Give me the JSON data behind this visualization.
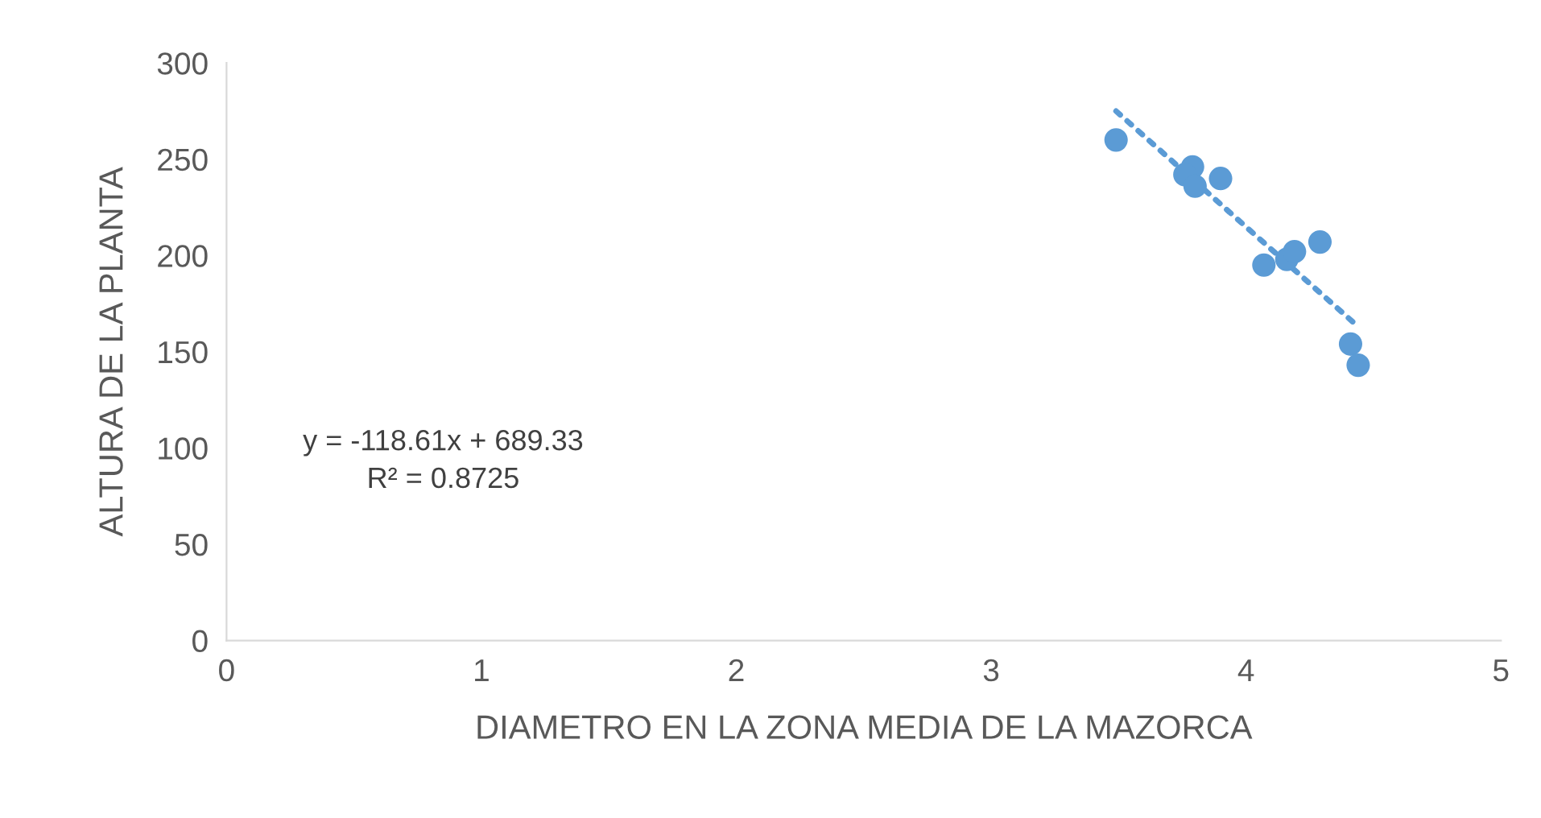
{
  "chart_data": {
    "type": "scatter",
    "xlabel": "DIAMETRO EN LA ZONA MEDIA DE LA MAZORCA",
    "ylabel": "ALTURA DE LA PLANTA",
    "series": [
      {
        "color": "#5b9bd5",
        "x": [
          3.49,
          3.79,
          3.76,
          3.8,
          3.9,
          4.07,
          4.16,
          4.19,
          4.29,
          4.41,
          4.44
        ],
        "values": [
          260,
          246,
          242,
          236,
          240,
          195,
          198,
          202,
          207,
          154,
          143
        ],
        "marker": "circle"
      },
      {
        "type": "line",
        "color": "#5b9bd5",
        "x": [
          3.49,
          4.44
        ],
        "values": [
          275,
          163
        ],
        "line_style": "dotted",
        "marker": "none"
      }
    ],
    "annotations": [
      "y = -118.61x + 689.33\nR² = 0.8725"
    ],
    "xlim": [
      0,
      5
    ],
    "xticks": [
      0,
      1,
      2,
      3,
      4,
      5
    ],
    "ylim": [
      0,
      300
    ],
    "yticks": [
      0,
      50,
      100,
      150,
      200,
      250,
      300
    ],
    "grid": false,
    "legend": false
  }
}
